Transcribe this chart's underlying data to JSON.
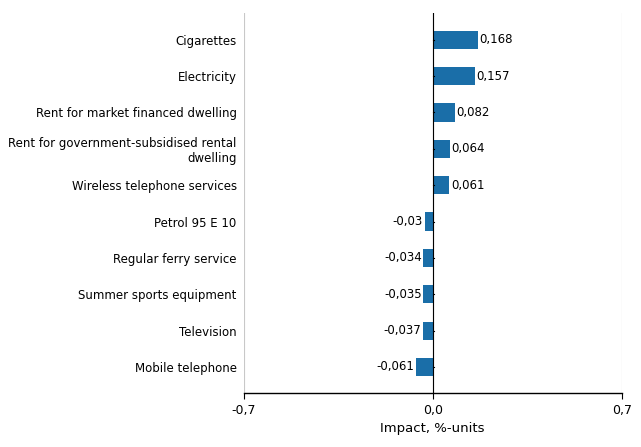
{
  "categories": [
    "Mobile telephone",
    "Television",
    "Summer sports equipment",
    "Regular ferry service",
    "Petrol 95 E 10",
    "Wireless telephone services",
    "Rent for government-subsidised rental\ndwelling",
    "Rent for market financed dwelling",
    "Electricity",
    "Cigarettes"
  ],
  "values": [
    -0.061,
    -0.037,
    -0.035,
    -0.034,
    -0.03,
    0.061,
    0.064,
    0.082,
    0.157,
    0.168
  ],
  "labels": [
    "-0,061",
    "-0,037",
    "-0,035",
    "-0,034",
    "-0,03",
    "0,061",
    "0,064",
    "0,082",
    "0,157",
    "0,168"
  ],
  "bar_color": "#1a6ea8",
  "xlabel": "Impact, %-units",
  "xlim": [
    -0.7,
    0.7
  ],
  "xticks": [
    -0.7,
    0.0,
    0.7
  ],
  "xticklabels": [
    "-0,7",
    "0,0",
    "0,7"
  ],
  "background_color": "#ffffff",
  "grid_color": "#c8c8c8",
  "label_fontsize": 8.5,
  "tick_fontsize": 9,
  "xlabel_fontsize": 9.5
}
